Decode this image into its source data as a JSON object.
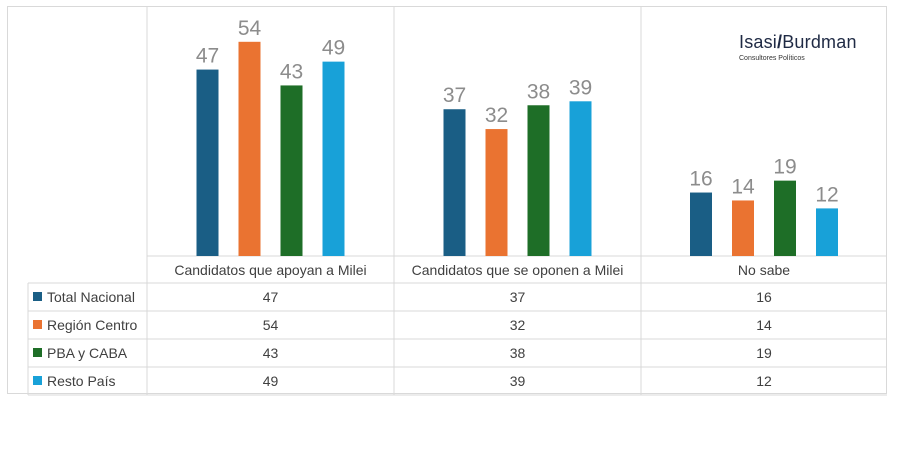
{
  "logo": {
    "brand_left": "Isasi",
    "brand_slash": "/",
    "brand_right": "Burdman",
    "subtitle": "Consultores Políticos"
  },
  "chart_data": {
    "type": "bar",
    "categories": [
      "Candidatos que apoyan a Milei",
      "Candidatos que se oponen a Milei",
      "No sabe"
    ],
    "series": [
      {
        "name": "Total Nacional",
        "color": "#1a5e85",
        "values": [
          47,
          37,
          16
        ]
      },
      {
        "name": "Región Centro",
        "color": "#ea7331",
        "values": [
          54,
          32,
          14
        ]
      },
      {
        "name": "PBA y CABA",
        "color": "#1e6e27",
        "values": [
          43,
          38,
          19
        ]
      },
      {
        "name": "Resto País",
        "color": "#18a1d8",
        "values": [
          49,
          39,
          12
        ]
      }
    ],
    "ylim": [
      0,
      60
    ],
    "grid": false,
    "legend": "table-bottom"
  }
}
